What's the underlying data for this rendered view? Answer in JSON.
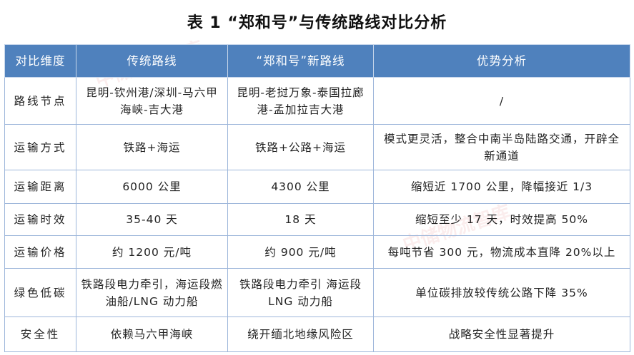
{
  "title": "表 1 “郑和号”与传统路线对比分析",
  "watermark": "中储物流智库",
  "colors": {
    "header_bg": "#4f81bd",
    "border": "#9db6da"
  },
  "table": {
    "headers": [
      "对比维度",
      "传统路线",
      "“郑和号”新路线",
      "优势分析"
    ],
    "rows": [
      [
        "路线节点",
        "昆明-钦州港/深圳-马六甲海峡-吉大港",
        "昆明-老挝万象-泰国拉廊港-孟加拉吉大港",
        "/"
      ],
      [
        "运输方式",
        "铁路+海运",
        "铁路+公路+海运",
        "模式更灵活，整合中南半岛陆路交通，开辟全新通道"
      ],
      [
        "运输距离",
        "6000 公里",
        "4300 公里",
        "缩短近 1700 公里，降幅接近 1/3"
      ],
      [
        "运输时效",
        "35-40 天",
        "18 天",
        "缩短至少 17 天，时效提高 50%"
      ],
      [
        "运输价格",
        "约 1200 元/吨",
        "约 900 元/吨",
        "每吨节省 300 元，物流成本直降 20%以上"
      ],
      [
        "绿色低碳",
        "铁路段电力牵引，海运段燃油船/LNG 动力船",
        "铁路段电力牵引 海运段 LNG 动力船",
        "单位碳排放较传统公路下降 35%"
      ],
      [
        "安全性",
        "依赖马六甲海峡",
        "绕开缅北地缘风险区",
        "战略安全性显著提升"
      ]
    ]
  }
}
